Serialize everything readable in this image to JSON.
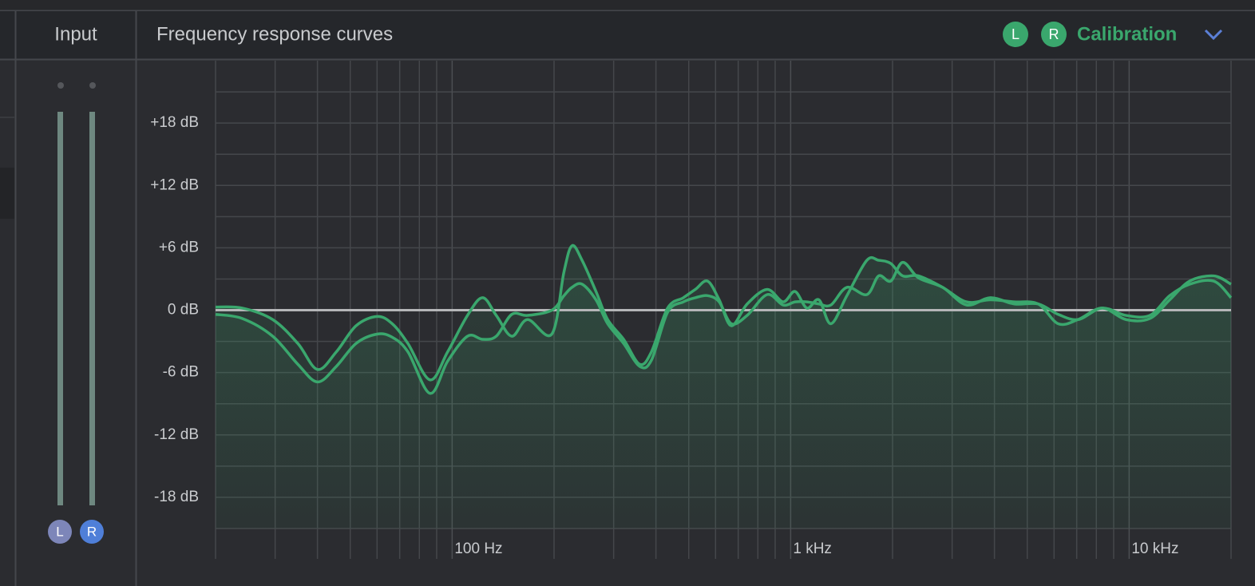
{
  "panel": {
    "title": "Input"
  },
  "meter": {
    "channels": [
      "L",
      "R"
    ]
  },
  "preset": "Calibration",
  "chart_data": {
    "type": "line",
    "title": "Frequency response curves",
    "x": [
      20,
      24,
      29.5,
      35,
      40,
      45.5,
      52,
      60,
      66.5,
      74,
      86,
      97,
      111,
      123,
      135,
      150,
      167,
      197,
      214,
      226,
      242,
      266,
      288,
      321,
      358,
      388,
      433,
      482,
      523,
      568,
      615,
      668,
      744,
      852,
      950,
      1030,
      1117,
      1212,
      1315,
      1466,
      1679,
      1820,
      1975,
      2143,
      2388,
      2811,
      3306,
      3891,
      4580,
      5387,
      6170,
      7065,
      8314,
      9787,
      11510,
      13180,
      15100,
      17780,
      20000
    ],
    "series": [
      {
        "name": "L",
        "color": "#3aa76d",
        "values": [
          0.3,
          0.2,
          -0.9,
          -3.2,
          -5.7,
          -4.0,
          -1.5,
          -0.6,
          -1.3,
          -3.2,
          -6.7,
          -4.0,
          -0.5,
          1.2,
          -0.5,
          -2.5,
          -0.9,
          -2.3,
          3.7,
          6.2,
          4.8,
          1.8,
          -0.9,
          -2.8,
          -5.2,
          -4.0,
          0.2,
          1.2,
          2.0,
          2.8,
          1.0,
          -1.5,
          0.6,
          2.0,
          0.8,
          1.8,
          0.2,
          1.0,
          -1.3,
          1.4,
          4.8,
          4.8,
          4.5,
          3.3,
          3.3,
          2.2,
          0.8,
          1.0,
          0.8,
          0.6,
          -1.3,
          -0.9,
          0.2,
          -0.9,
          -0.8,
          1.0,
          2.8,
          3.3,
          2.5
        ]
      },
      {
        "name": "R",
        "color": "#3aa76d",
        "values": [
          -0.4,
          -0.8,
          -2.5,
          -5.2,
          -6.9,
          -5.4,
          -3.2,
          -2.3,
          -2.6,
          -4.0,
          -8.0,
          -4.9,
          -2.5,
          -2.8,
          -2.5,
          -0.4,
          -0.5,
          0,
          1.4,
          2.2,
          2.5,
          1.0,
          -1.3,
          -3.2,
          -5.4,
          -4.8,
          -0.2,
          0.8,
          1.2,
          1.4,
          0.8,
          -1.3,
          -0.5,
          1.5,
          0.5,
          0.8,
          0.8,
          0.6,
          0.5,
          2.2,
          1.5,
          3.3,
          2.8,
          4.6,
          3.1,
          2.2,
          0.5,
          1.2,
          0.6,
          0.6,
          -0.4,
          -0.9,
          0.2,
          -0.5,
          -0.5,
          1.4,
          2.5,
          2.8,
          1.2
        ]
      }
    ],
    "xlim": [
      20,
      20000
    ],
    "xlog": true,
    "xticks": [
      {
        "value": 100,
        "label": "100 Hz"
      },
      {
        "value": 1000,
        "label": "1 kHz"
      },
      {
        "value": 10000,
        "label": "10 kHz"
      }
    ],
    "minor_xticks": [
      20,
      30,
      40,
      50,
      60,
      70,
      80,
      90,
      200,
      300,
      400,
      500,
      600,
      700,
      800,
      900,
      2000,
      3000,
      4000,
      5000,
      6000,
      7000,
      8000,
      9000,
      20000
    ],
    "ylim": [
      -21,
      24
    ],
    "yticks": [
      {
        "value": 18,
        "label": "+18 dB"
      },
      {
        "value": 12,
        "label": "+12 dB"
      },
      {
        "value": 6,
        "label": "+6 dB"
      },
      {
        "value": 0,
        "label": "0 dB"
      },
      {
        "value": -6,
        "label": "-6 dB"
      },
      {
        "value": -12,
        "label": "-12 dB"
      },
      {
        "value": -18,
        "label": "-18 dB"
      }
    ],
    "minor_yticks": [
      -21,
      -15,
      -9,
      -3,
      3,
      9,
      15,
      21
    ],
    "grid": true
  }
}
